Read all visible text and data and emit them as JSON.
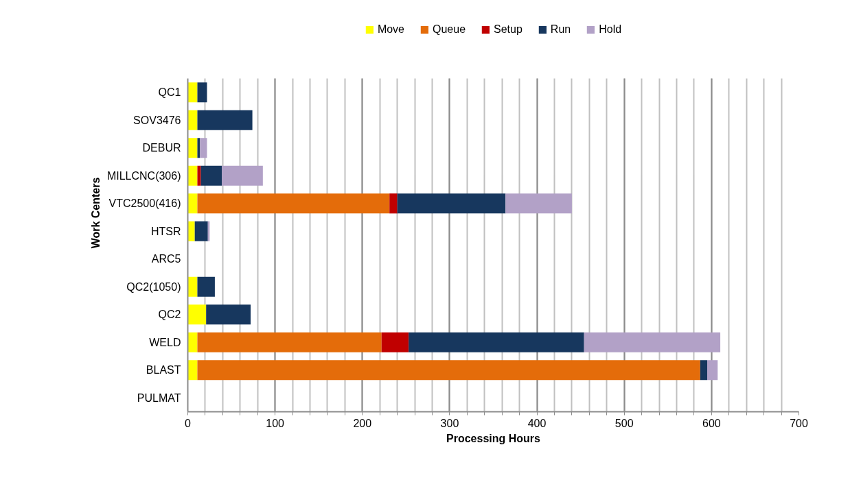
{
  "chart_data": {
    "type": "bar",
    "orientation": "horizontal",
    "stacked": true,
    "categories": [
      "QC1",
      "SOV3476",
      "DEBUR",
      "MILLCNC(306)",
      "VTC2500(416)",
      "HTSR",
      "ARC5",
      "QC2(1050)",
      "QC2",
      "WELD",
      "BLAST",
      "PULMAT"
    ],
    "series": [
      {
        "name": "Move",
        "color": "#ffff00",
        "values": [
          11,
          11,
          11,
          11,
          11,
          8,
          0,
          11,
          21,
          11,
          11,
          0
        ]
      },
      {
        "name": "Queue",
        "color": "#e46c0a",
        "values": [
          0,
          0,
          0,
          0,
          220,
          0,
          0,
          0,
          0,
          211,
          576,
          0
        ]
      },
      {
        "name": "Setup",
        "color": "#c00000",
        "values": [
          0,
          0,
          0,
          4,
          9,
          0,
          0,
          0,
          0,
          31,
          0,
          0
        ]
      },
      {
        "name": "Run",
        "color": "#17375e",
        "values": [
          11,
          63,
          3,
          24,
          124,
          15,
          0,
          20,
          51,
          201,
          8,
          0
        ]
      },
      {
        "name": "Hold",
        "color": "#b2a1c7",
        "values": [
          0,
          0,
          8,
          47,
          76,
          2,
          0,
          0,
          0,
          156,
          12,
          0
        ]
      }
    ],
    "xlabel": "Processing Hours",
    "ylabel": "Work Centers",
    "xlim": [
      0,
      700
    ],
    "xticks": [
      0,
      {
        "value": 20,
        "label": null
      },
      {
        "value": 40,
        "label": null
      },
      {
        "value": 60,
        "label": null
      },
      {
        "value": 80,
        "label": null
      },
      100,
      {
        "value": 120,
        "label": null
      },
      {
        "value": 140,
        "label": null
      },
      {
        "value": 160,
        "label": null
      },
      {
        "value": 180,
        "label": null
      },
      200,
      {
        "value": 220,
        "label": null
      },
      {
        "value": 240,
        "label": null
      },
      {
        "value": 260,
        "label": null
      },
      {
        "value": 280,
        "label": null
      },
      300,
      {
        "value": 320,
        "label": null
      },
      {
        "value": 340,
        "label": null
      },
      {
        "value": 360,
        "label": null
      },
      {
        "value": 380,
        "label": null
      },
      400,
      {
        "value": 420,
        "label": null
      },
      {
        "value": 440,
        "label": null
      },
      {
        "value": 460,
        "label": null
      },
      {
        "value": 480,
        "label": null
      },
      500,
      {
        "value": 520,
        "label": null
      },
      {
        "value": 540,
        "label": null
      },
      {
        "value": 560,
        "label": null
      },
      {
        "value": 580,
        "label": null
      },
      600,
      {
        "value": 620,
        "label": null
      },
      {
        "value": 640,
        "label": null
      },
      {
        "value": 660,
        "label": null
      },
      {
        "value": 680,
        "label": null
      },
      700
    ],
    "grid": "x",
    "legend": "top"
  }
}
